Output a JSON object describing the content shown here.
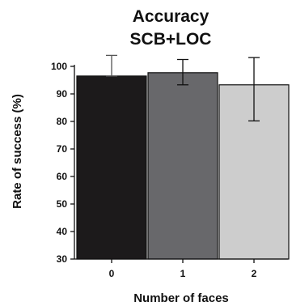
{
  "chart_data": {
    "type": "bar",
    "title": [
      "Accuracy",
      "SCB+LOC"
    ],
    "xlabel": "Number of faces",
    "ylabel": "Rate of success (%)",
    "categories": [
      "0",
      "1",
      "2"
    ],
    "values": [
      96.5,
      97.7,
      93.3
    ],
    "error_upper": [
      104.0,
      102.5,
      103.2
    ],
    "error_lower": [
      96.5,
      93.3,
      80.2
    ],
    "ylim": [
      30,
      100
    ],
    "yticks": [
      30,
      40,
      50,
      60,
      70,
      80,
      90,
      100
    ],
    "bar_colors": [
      "#1c1a1b",
      "#68686b",
      "#cdcdcd"
    ],
    "grid": false,
    "legend": "none"
  }
}
